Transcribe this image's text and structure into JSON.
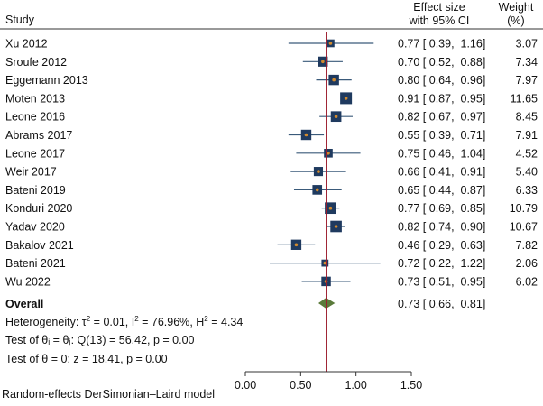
{
  "chart_data": {
    "type": "forest",
    "headers": {
      "study": "Study",
      "effect_line1": "Effect size",
      "effect_line2": "with 95% CI",
      "weight_line1": "Weight",
      "weight_line2": "(%)"
    },
    "studies": [
      {
        "name": "Xu 2012",
        "es": 0.77,
        "lo": 0.39,
        "hi": 1.16,
        "weight": 3.07,
        "ci_text": "0.77 [ 0.39,  1.16]",
        "weight_text": "3.07"
      },
      {
        "name": "Sroufe 2012",
        "es": 0.7,
        "lo": 0.52,
        "hi": 0.88,
        "weight": 7.34,
        "ci_text": "0.70 [ 0.52,  0.88]",
        "weight_text": "7.34"
      },
      {
        "name": "Eggemann 2013",
        "es": 0.8,
        "lo": 0.64,
        "hi": 0.96,
        "weight": 7.97,
        "ci_text": "0.80 [ 0.64,  0.96]",
        "weight_text": "7.97"
      },
      {
        "name": "Moten 2013",
        "es": 0.91,
        "lo": 0.87,
        "hi": 0.95,
        "weight": 11.65,
        "ci_text": "0.91 [ 0.87,  0.95]",
        "weight_text": "11.65"
      },
      {
        "name": "Leone 2016",
        "es": 0.82,
        "lo": 0.67,
        "hi": 0.97,
        "weight": 8.45,
        "ci_text": "0.82 [ 0.67,  0.97]",
        "weight_text": "8.45"
      },
      {
        "name": "Abrams 2017",
        "es": 0.55,
        "lo": 0.39,
        "hi": 0.71,
        "weight": 7.91,
        "ci_text": "0.55 [ 0.39,  0.71]",
        "weight_text": "7.91"
      },
      {
        "name": "Leone 2017",
        "es": 0.75,
        "lo": 0.46,
        "hi": 1.04,
        "weight": 4.52,
        "ci_text": "0.75 [ 0.46,  1.04]",
        "weight_text": "4.52"
      },
      {
        "name": "Weir 2017",
        "es": 0.66,
        "lo": 0.41,
        "hi": 0.91,
        "weight": 5.4,
        "ci_text": "0.66 [ 0.41,  0.91]",
        "weight_text": "5.40"
      },
      {
        "name": "Bateni 2019",
        "es": 0.65,
        "lo": 0.44,
        "hi": 0.87,
        "weight": 6.33,
        "ci_text": "0.65 [ 0.44,  0.87]",
        "weight_text": "6.33"
      },
      {
        "name": "Konduri 2020",
        "es": 0.77,
        "lo": 0.69,
        "hi": 0.85,
        "weight": 10.79,
        "ci_text": "0.77 [ 0.69,  0.85]",
        "weight_text": "10.79"
      },
      {
        "name": "Yadav 2020",
        "es": 0.82,
        "lo": 0.74,
        "hi": 0.9,
        "weight": 10.67,
        "ci_text": "0.82 [ 0.74,  0.90]",
        "weight_text": "10.67"
      },
      {
        "name": "Bakalov 2021",
        "es": 0.46,
        "lo": 0.29,
        "hi": 0.63,
        "weight": 7.82,
        "ci_text": "0.46 [ 0.29,  0.63]",
        "weight_text": "7.82"
      },
      {
        "name": "Bateni 2021",
        "es": 0.72,
        "lo": 0.22,
        "hi": 1.22,
        "weight": 2.06,
        "ci_text": "0.72 [ 0.22,  1.22]",
        "weight_text": "2.06"
      },
      {
        "name": "Wu 2022",
        "es": 0.73,
        "lo": 0.51,
        "hi": 0.95,
        "weight": 6.02,
        "ci_text": "0.73 [ 0.51,  0.95]",
        "weight_text": "6.02"
      }
    ],
    "overall": {
      "label": "Overall",
      "es": 0.73,
      "lo": 0.66,
      "hi": 0.81,
      "ci_text": "0.73 [ 0.66,  0.81]"
    },
    "heterogeneity": {
      "prefix": "Heterogeneity: ",
      "tau2_value": "0.01",
      "i2_value": "76.96%",
      "h2_value": "4.34"
    },
    "test_homogeneity": "Test of θᵢ = θⱼ: Q(13) = 56.42, p = 0.00",
    "test_effect": "Test of θ = 0: z = 18.41, p = 0.00",
    "xaxis": {
      "min": 0.0,
      "max": 1.5,
      "ticks": [
        0.0,
        0.5,
        1.0,
        1.5
      ],
      "tick_labels": [
        "0.00",
        "0.50",
        "1.00",
        "1.50"
      ]
    },
    "footnote": "Random-effects DerSimonian–Laird model",
    "colors": {
      "box": "#1f3a5f",
      "point": "#d08a2e",
      "ci_line": "#3a5a7a",
      "overall_diamond": "#5a7a3a",
      "reference_line": "#9b1c2c"
    }
  }
}
